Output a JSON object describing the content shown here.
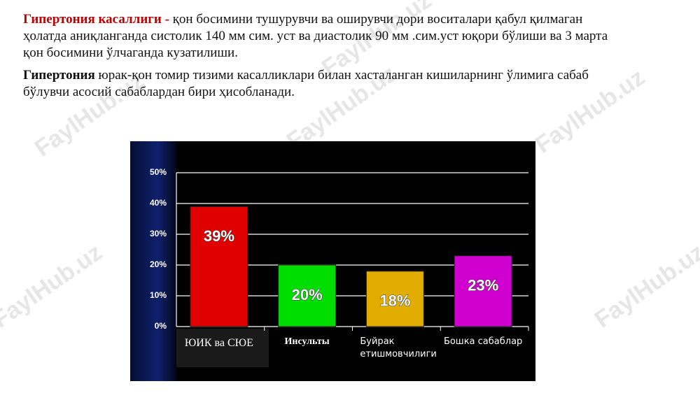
{
  "paragraph_1": {
    "bold": "Гипертония касаллиги  -",
    "lines": [
      "қон босимини тушурувчи ва оширувчи дори воситалари қабул қилмаган",
      "ҳолатда аниқланганда систолик 140 мм сим. уст ва диастолик 90 мм .сим.уст юқори бўлиши ва 3 марта",
      "қон босимини ўлчаганда кузатилиши."
    ]
  },
  "paragraph_2": {
    "bold": "Гипертония",
    "lines": [
      "юрак-қон томир тизими касалликлари билан хасталанган кишиларнинг ўлимига сабаб",
      "бўлувчи асосий сабаблардан бири ҳисобланади."
    ]
  },
  "watermark": "FaylHub.uz",
  "chart_data": {
    "type": "bar",
    "categories": [
      "ЮИК ва СЮЕ",
      "Инсульты",
      "Буйрак етишмовчилиги",
      "Бошка сабаблар"
    ],
    "values": [
      39,
      20,
      18,
      23
    ],
    "value_labels": [
      "39%",
      "20%",
      "18%",
      "23%"
    ],
    "colors": [
      "#e00000",
      "#00dd00",
      "#e0ad00",
      "#d000d0"
    ],
    "ylim": [
      0,
      50
    ],
    "yticks": [
      {
        "value": 0,
        "label": "0%"
      },
      {
        "value": 10,
        "label": "10%"
      },
      {
        "value": 20,
        "label": "20%"
      },
      {
        "value": 30,
        "label": "30%"
      },
      {
        "value": 40,
        "label": "40%"
      },
      {
        "value": 50,
        "label": "50%"
      }
    ],
    "grid": true
  }
}
